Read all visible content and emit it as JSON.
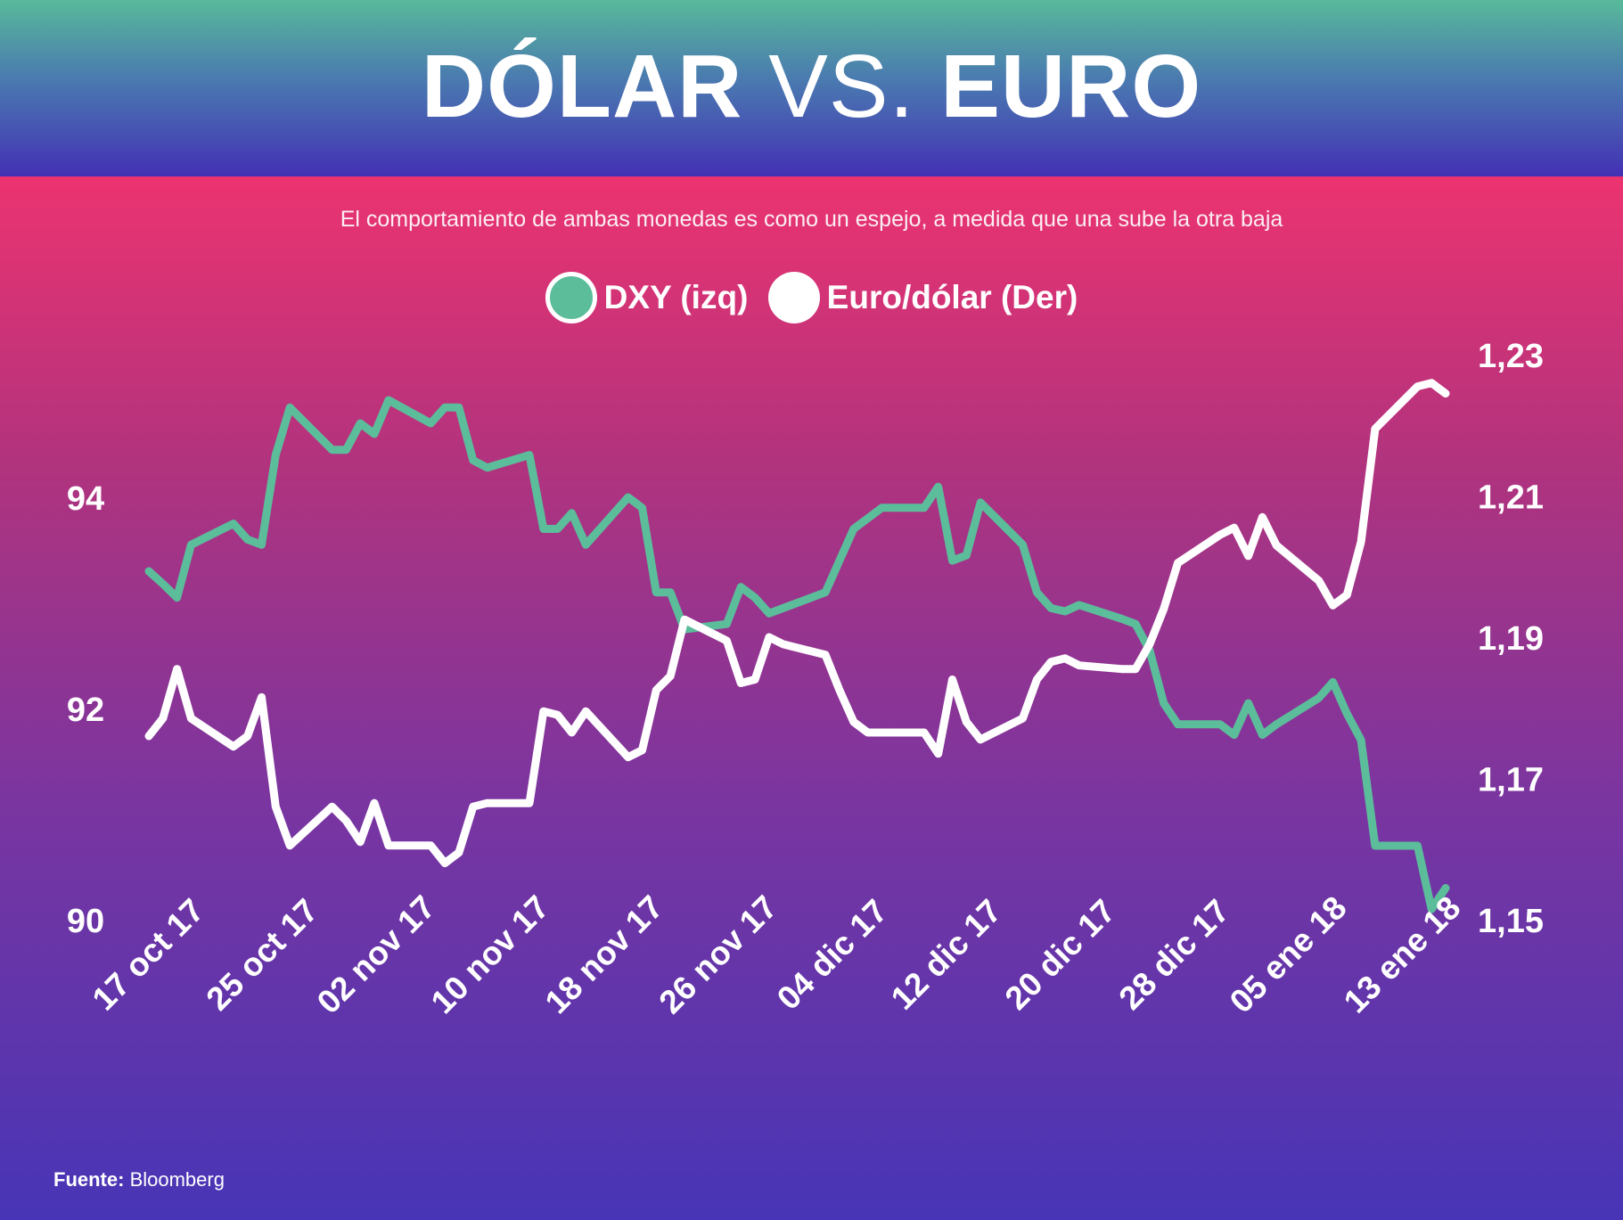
{
  "header": {
    "title_part1": "DÓLAR",
    "title_part2": "VS.",
    "title_part3": "EURO"
  },
  "subtitle": "El comportamiento de ambas monedas es como un espejo, a medida que una sube la otra baja",
  "legend": [
    {
      "label": "DXY (izq)",
      "color": "#5cbd9b"
    },
    {
      "label": "Euro/dólar (Der)",
      "color": "#ffffff"
    }
  ],
  "source": {
    "label": "Fuente:",
    "value": "Bloomberg"
  },
  "colors": {
    "dxy": "#5cbd9b",
    "eurusd": "#ffffff"
  },
  "chart_data": {
    "type": "line",
    "x_tick_labels": [
      "17 oct 17",
      "25 oct 17",
      "02 nov 17",
      "10 nov 17",
      "18 nov 17",
      "26 nov 17",
      "04 dic 17",
      "12 dic 17",
      "20 dic 17",
      "28 dic 17",
      "05 ene 18",
      "13 ene 18"
    ],
    "x_range": [
      "2017-10-17",
      "2018-01-17"
    ],
    "y_left": {
      "ticks": [
        "94",
        "92",
        "90"
      ],
      "tick_values": [
        94,
        92,
        90
      ],
      "range": [
        90,
        94
      ]
    },
    "y_right": {
      "ticks": [
        "1,23",
        "1,21",
        "1,19",
        "1,17",
        "1,15"
      ],
      "tick_values": [
        1.23,
        1.21,
        1.19,
        1.17,
        1.15
      ],
      "range": [
        1.15,
        1.23
      ]
    },
    "grid": false,
    "series": [
      {
        "name": "DXY (izq)",
        "axis": "left",
        "points": [
          [
            "2017-10-17",
            93.3
          ],
          [
            "2017-10-18",
            93.18
          ],
          [
            "2017-10-19",
            93.05
          ],
          [
            "2017-10-20",
            93.55
          ],
          [
            "2017-10-23",
            93.75
          ],
          [
            "2017-10-24",
            93.6
          ],
          [
            "2017-10-25",
            93.55
          ],
          [
            "2017-10-26",
            94.4
          ],
          [
            "2017-10-27",
            94.85
          ],
          [
            "2017-10-30",
            94.45
          ],
          [
            "2017-10-31",
            94.45
          ],
          [
            "2017-11-01",
            94.7
          ],
          [
            "2017-11-02",
            94.6
          ],
          [
            "2017-11-03",
            94.92
          ],
          [
            "2017-11-06",
            94.7
          ],
          [
            "2017-11-07",
            94.85
          ],
          [
            "2017-11-08",
            94.85
          ],
          [
            "2017-11-09",
            94.35
          ],
          [
            "2017-11-10",
            94.28
          ],
          [
            "2017-11-13",
            94.4
          ],
          [
            "2017-11-14",
            93.7
          ],
          [
            "2017-11-15",
            93.7
          ],
          [
            "2017-11-16",
            93.85
          ],
          [
            "2017-11-17",
            93.55
          ],
          [
            "2017-11-20",
            94.0
          ],
          [
            "2017-11-21",
            93.9
          ],
          [
            "2017-11-22",
            93.1
          ],
          [
            "2017-11-23",
            93.1
          ],
          [
            "2017-11-24",
            92.75
          ],
          [
            "2017-11-27",
            92.8
          ],
          [
            "2017-11-28",
            93.15
          ],
          [
            "2017-11-29",
            93.05
          ],
          [
            "2017-11-30",
            92.9
          ],
          [
            "2017-12-01",
            92.95
          ],
          [
            "2017-12-04",
            93.1
          ],
          [
            "2017-12-05",
            93.4
          ],
          [
            "2017-12-06",
            93.7
          ],
          [
            "2017-12-07",
            93.8
          ],
          [
            "2017-12-08",
            93.9
          ],
          [
            "2017-12-11",
            93.9
          ],
          [
            "2017-12-12",
            94.1
          ],
          [
            "2017-12-13",
            93.4
          ],
          [
            "2017-12-14",
            93.45
          ],
          [
            "2017-12-15",
            93.95
          ],
          [
            "2017-12-18",
            93.55
          ],
          [
            "2017-12-19",
            93.1
          ],
          [
            "2017-12-20",
            92.95
          ],
          [
            "2017-12-21",
            92.92
          ],
          [
            "2017-12-22",
            92.98
          ],
          [
            "2017-12-25",
            92.85
          ],
          [
            "2017-12-26",
            92.8
          ],
          [
            "2017-12-27",
            92.55
          ],
          [
            "2017-12-28",
            92.05
          ],
          [
            "2017-12-29",
            91.85
          ],
          [
            "2018-01-01",
            91.85
          ],
          [
            "2018-01-02",
            91.75
          ],
          [
            "2018-01-03",
            92.05
          ],
          [
            "2018-01-04",
            91.75
          ],
          [
            "2018-01-05",
            91.85
          ],
          [
            "2018-01-08",
            92.1
          ],
          [
            "2018-01-09",
            92.25
          ],
          [
            "2018-01-10",
            91.95
          ],
          [
            "2018-01-11",
            91.7
          ],
          [
            "2018-01-12",
            90.7
          ],
          [
            "2018-01-15",
            90.7
          ],
          [
            "2018-01-16",
            90.1
          ],
          [
            "2018-01-17",
            90.3
          ]
        ]
      },
      {
        "name": "Euro/dólar (Der)",
        "axis": "right",
        "points": [
          [
            "2017-10-17",
            1.176
          ],
          [
            "2017-10-18",
            1.1785
          ],
          [
            "2017-10-19",
            1.1855
          ],
          [
            "2017-10-20",
            1.1785
          ],
          [
            "2017-10-23",
            1.1745
          ],
          [
            "2017-10-24",
            1.176
          ],
          [
            "2017-10-25",
            1.1815
          ],
          [
            "2017-10-26",
            1.166
          ],
          [
            "2017-10-27",
            1.1605
          ],
          [
            "2017-10-30",
            1.166
          ],
          [
            "2017-10-31",
            1.164
          ],
          [
            "2017-11-01",
            1.161
          ],
          [
            "2017-11-02",
            1.1665
          ],
          [
            "2017-11-03",
            1.1605
          ],
          [
            "2017-11-06",
            1.1605
          ],
          [
            "2017-11-07",
            1.158
          ],
          [
            "2017-11-08",
            1.1595
          ],
          [
            "2017-11-09",
            1.166
          ],
          [
            "2017-11-10",
            1.1665
          ],
          [
            "2017-11-13",
            1.1665
          ],
          [
            "2017-11-14",
            1.1795
          ],
          [
            "2017-11-15",
            1.179
          ],
          [
            "2017-11-16",
            1.1765
          ],
          [
            "2017-11-17",
            1.1795
          ],
          [
            "2017-11-20",
            1.173
          ],
          [
            "2017-11-21",
            1.174
          ],
          [
            "2017-11-22",
            1.1825
          ],
          [
            "2017-11-23",
            1.1845
          ],
          [
            "2017-11-24",
            1.1925
          ],
          [
            "2017-11-27",
            1.1895
          ],
          [
            "2017-11-28",
            1.1835
          ],
          [
            "2017-11-29",
            1.184
          ],
          [
            "2017-11-30",
            1.19
          ],
          [
            "2017-12-01",
            1.189
          ],
          [
            "2017-12-04",
            1.1875
          ],
          [
            "2017-12-05",
            1.1825
          ],
          [
            "2017-12-06",
            1.178
          ],
          [
            "2017-12-07",
            1.1765
          ],
          [
            "2017-12-08",
            1.1765
          ],
          [
            "2017-12-11",
            1.1765
          ],
          [
            "2017-12-12",
            1.1735
          ],
          [
            "2017-12-13",
            1.184
          ],
          [
            "2017-12-14",
            1.178
          ],
          [
            "2017-12-15",
            1.1755
          ],
          [
            "2017-12-18",
            1.1785
          ],
          [
            "2017-12-19",
            1.184
          ],
          [
            "2017-12-20",
            1.1865
          ],
          [
            "2017-12-21",
            1.187
          ],
          [
            "2017-12-22",
            1.186
          ],
          [
            "2017-12-25",
            1.1855
          ],
          [
            "2017-12-26",
            1.1855
          ],
          [
            "2017-12-27",
            1.189
          ],
          [
            "2017-12-28",
            1.194
          ],
          [
            "2017-12-29",
            1.2005
          ],
          [
            "2018-01-01",
            1.2045
          ],
          [
            "2018-01-02",
            1.2055
          ],
          [
            "2018-01-03",
            1.2015
          ],
          [
            "2018-01-04",
            1.207
          ],
          [
            "2018-01-05",
            1.203
          ],
          [
            "2018-01-08",
            1.198
          ],
          [
            "2018-01-09",
            1.1945
          ],
          [
            "2018-01-10",
            1.196
          ],
          [
            "2018-01-11",
            1.2035
          ],
          [
            "2018-01-12",
            1.2195
          ],
          [
            "2018-01-15",
            1.2255
          ],
          [
            "2018-01-16",
            1.226
          ],
          [
            "2018-01-17",
            1.2245
          ]
        ]
      }
    ]
  }
}
